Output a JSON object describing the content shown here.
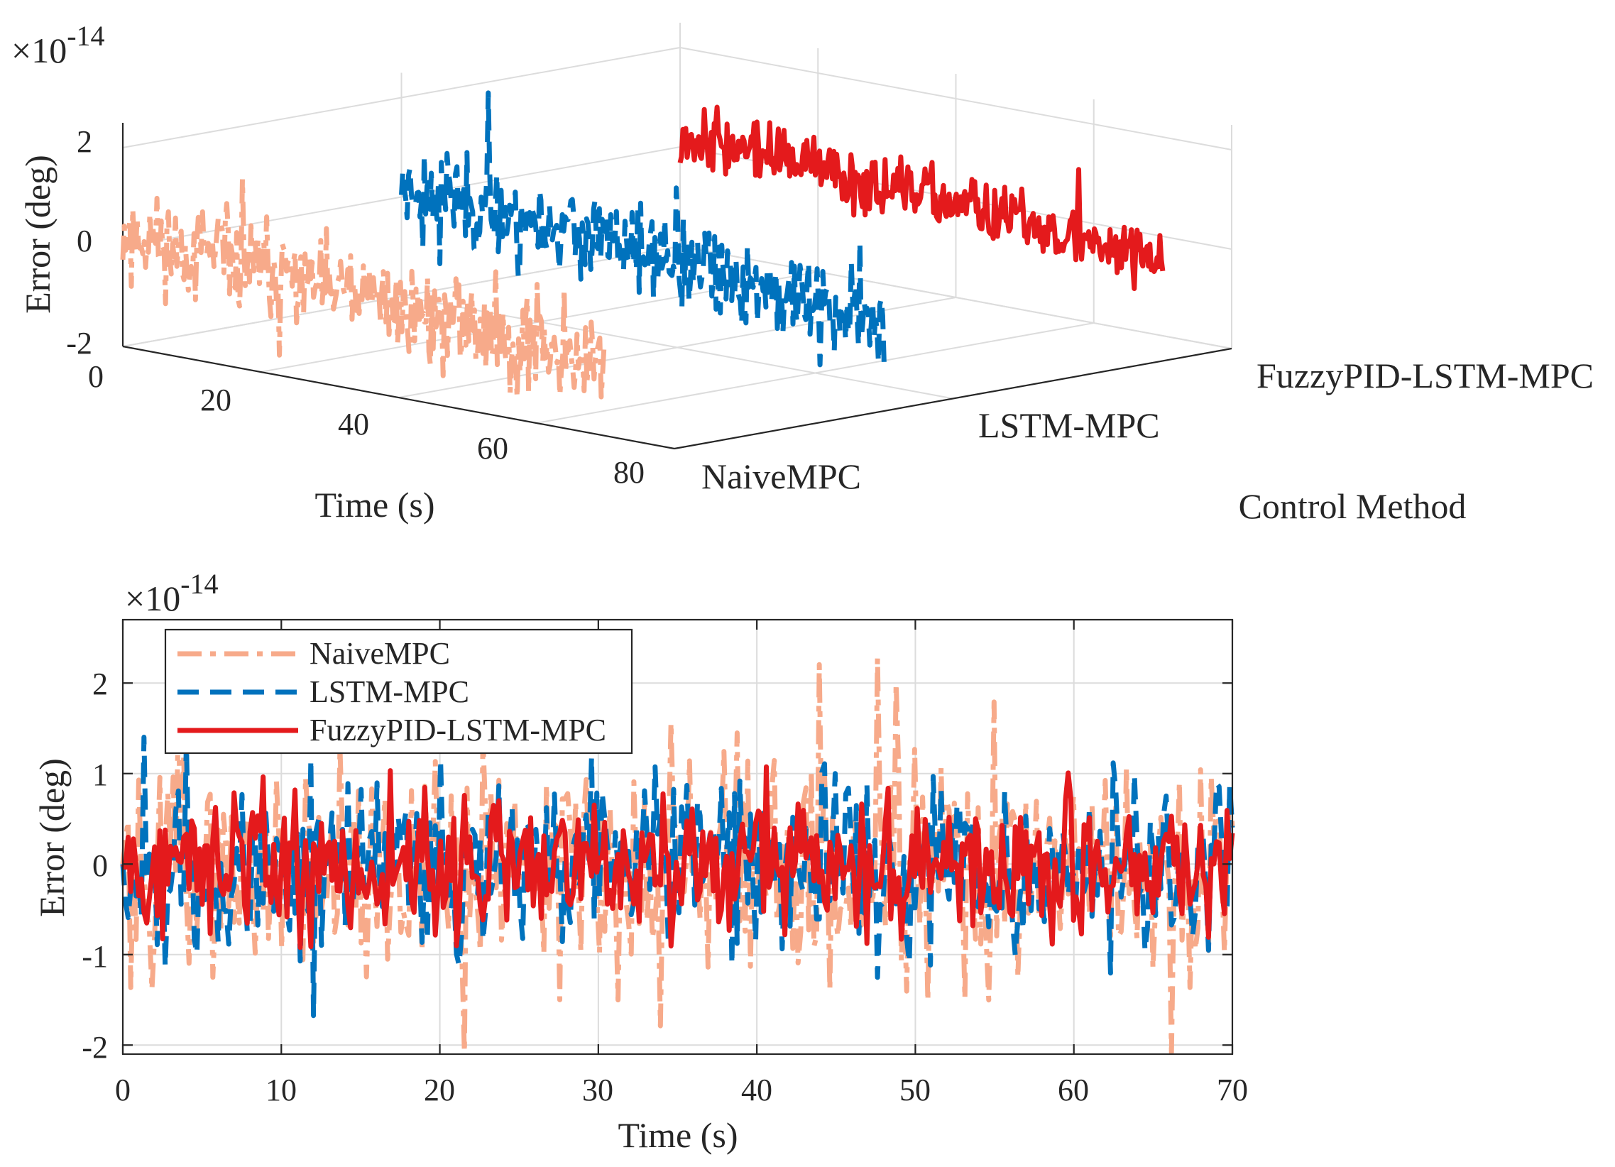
{
  "chart_data": [
    {
      "type": "line",
      "view": "3d",
      "x": {
        "label": "Time (s)",
        "ticks": [
          0,
          20,
          40,
          60,
          80
        ],
        "range": [
          0,
          80
        ]
      },
      "y": {
        "label": "Control Method",
        "categories": [
          "NaiveMPC",
          "LSTM-MPC",
          "FuzzyPID-LSTM-MPC"
        ]
      },
      "z": {
        "label": "Error (deg)",
        "ticks": [
          "-2",
          "0",
          "2"
        ],
        "range": [
          -2,
          2.5
        ],
        "exponent_label": "×10",
        "exponent": "-14"
      },
      "grid": true,
      "series": [
        {
          "name": "NaiveMPC",
          "color": "#F7AA8A",
          "dash": "dashdot",
          "seed": 11,
          "amp": 0.55,
          "trend": -0.02
        },
        {
          "name": "LSTM-MPC",
          "color": "#0072BD",
          "dash": "dashed",
          "seed": 23,
          "amp": 0.5,
          "trend": -0.025
        },
        {
          "name": "FuzzyPID-LSTM-MPC",
          "color": "#E41A1C",
          "dash": "solid",
          "seed": 37,
          "amp": 0.35,
          "trend": -0.018
        }
      ]
    },
    {
      "type": "line",
      "x": {
        "label": "Time (s)",
        "ticks": [
          0,
          10,
          20,
          30,
          40,
          50,
          60,
          70
        ],
        "range": [
          0,
          70
        ]
      },
      "y": {
        "label": "Error (deg)",
        "ticks": [
          "-2",
          "-1",
          "0",
          "1",
          "2"
        ],
        "range": [
          -2.1,
          2.7
        ],
        "exponent_label": "×10",
        "exponent": "-14"
      },
      "grid": true,
      "legend": {
        "placement": "top-left",
        "entries": [
          "NaiveMPC",
          "LSTM-MPC",
          "FuzzyPID-LSTM-MPC"
        ]
      },
      "series": [
        {
          "name": "NaiveMPC",
          "color": "#F7AA8A",
          "dash": "dashdot",
          "seed": 101,
          "amp": 0.75
        },
        {
          "name": "LSTM-MPC",
          "color": "#0072BD",
          "dash": "dashed",
          "seed": 202,
          "amp": 0.62
        },
        {
          "name": "FuzzyPID-LSTM-MPC",
          "color": "#E41A1C",
          "dash": "solid",
          "seed": 303,
          "amp": 0.45
        }
      ]
    }
  ]
}
